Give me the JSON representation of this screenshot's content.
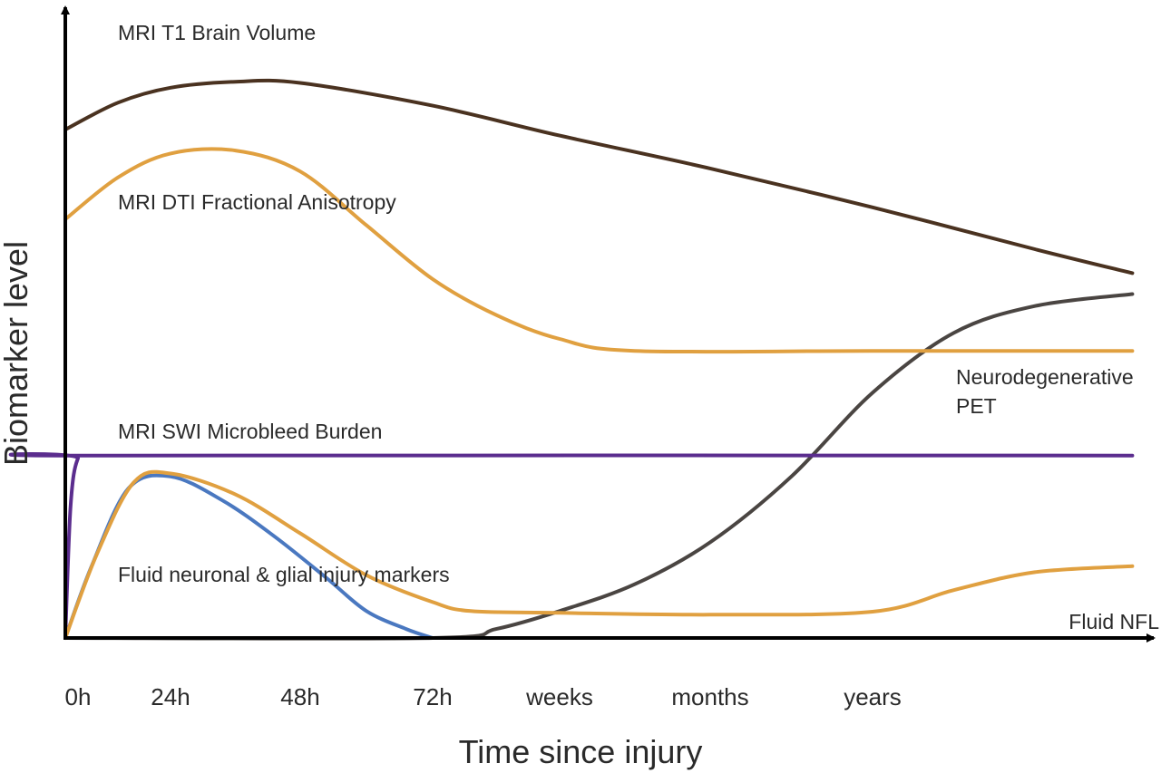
{
  "chart_data": {
    "type": "line",
    "xlabel": "Time since injury",
    "ylabel": "Biomarker level",
    "categories": [
      "0h",
      "24h",
      "48h",
      "72h",
      "weeks",
      "months",
      "years"
    ],
    "grid": false,
    "legend": "none (series labelled directly on the plot)",
    "y_range": [
      0,
      100
    ],
    "series": [
      {
        "name": "MRI T1 Brain Volume",
        "color": "#4a3220",
        "points": [
          [
            0,
            85
          ],
          [
            0.5,
            89.5
          ],
          [
            1,
            92
          ],
          [
            1.5,
            93
          ],
          [
            2,
            92.8
          ],
          [
            3,
            89
          ],
          [
            4,
            84
          ],
          [
            5,
            78.5
          ],
          [
            6,
            72
          ],
          [
            7,
            65
          ],
          [
            7.6,
            61
          ]
        ]
      },
      {
        "name": "MRI DTI Fractional Anisotropy",
        "color": "#e0a040",
        "points": [
          [
            0,
            70
          ],
          [
            0.5,
            77
          ],
          [
            1,
            81
          ],
          [
            1.5,
            81.5
          ],
          [
            2,
            78
          ],
          [
            2.5,
            69
          ],
          [
            3,
            60
          ],
          [
            3.5,
            54
          ],
          [
            4,
            50
          ],
          [
            4.5,
            48
          ],
          [
            6,
            48
          ],
          [
            7.6,
            48
          ]
        ]
      },
      {
        "name": "MRI SWI Microbleed Burden",
        "color": "#5b2d8e",
        "points": [
          [
            0,
            0
          ],
          [
            0.05,
            22
          ],
          [
            0.12,
            30
          ],
          [
            0.25,
            30.5
          ],
          [
            7.6,
            30.5
          ]
        ]
      },
      {
        "name": "Fluid neuronal & glial injury markers",
        "color": "#4a78c0",
        "points": [
          [
            0,
            0
          ],
          [
            0.25,
            12
          ],
          [
            0.6,
            25
          ],
          [
            1,
            27
          ],
          [
            1.4,
            23
          ],
          [
            1.8,
            17
          ],
          [
            2.2,
            10
          ],
          [
            2.5,
            4.5
          ],
          [
            2.8,
            1.5
          ],
          [
            3,
            0
          ]
        ]
      },
      {
        "name": "Fluid NFL",
        "color": "#e0a040",
        "points": [
          [
            0,
            0
          ],
          [
            0.3,
            14
          ],
          [
            0.65,
            26
          ],
          [
            1,
            27.5
          ],
          [
            1.5,
            24
          ],
          [
            2,
            17.5
          ],
          [
            2.5,
            10.5
          ],
          [
            3,
            6
          ],
          [
            3.3,
            4.5
          ],
          [
            4,
            4.2
          ],
          [
            5,
            3.9
          ],
          [
            6,
            4.4
          ],
          [
            6.5,
            8
          ],
          [
            7,
            11
          ],
          [
            7.6,
            12
          ]
        ]
      },
      {
        "name": "Neurodegenerative PET",
        "color": "#4a4542",
        "label_lines": [
          "Neurodegenerative",
          "PET"
        ],
        "points": [
          [
            0,
            0
          ],
          [
            3,
            0
          ],
          [
            3.5,
            1.5
          ],
          [
            4,
            4.5
          ],
          [
            4.5,
            9
          ],
          [
            5,
            16
          ],
          [
            5.5,
            27
          ],
          [
            6,
            41
          ],
          [
            6.5,
            51
          ],
          [
            7,
            55.5
          ],
          [
            7.6,
            57.5
          ]
        ]
      }
    ]
  }
}
